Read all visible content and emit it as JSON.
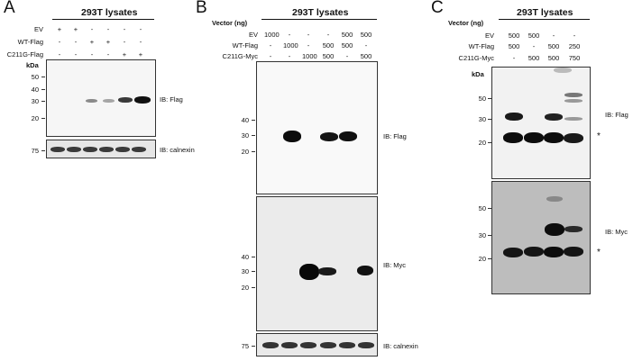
{
  "panels": {
    "A": {
      "letter": "A",
      "title": "293T lysates",
      "rows": [
        {
          "label": "EV",
          "vals": [
            "+",
            "+",
            "-",
            "-",
            "-",
            "-"
          ]
        },
        {
          "label": "WT-Flag",
          "vals": [
            "-",
            "-",
            "+",
            "+",
            "-",
            "-"
          ]
        },
        {
          "label": "C211G-Flag",
          "vals": [
            "-",
            "-",
            "-",
            "-",
            "+",
            "+"
          ]
        }
      ],
      "kda": "kDa",
      "mw_top": [
        "50",
        "40",
        "30",
        "20"
      ],
      "mw_bottom": [
        "75"
      ],
      "ib_top": "IB: Flag",
      "ib_bottom": "IB: calnexin"
    },
    "B": {
      "letter": "B",
      "title": "293T lysates",
      "vector_label": "Vector (ng)",
      "rows": [
        {
          "label": "EV",
          "vals": [
            "1000",
            "-",
            "-",
            "-",
            "500",
            "500"
          ]
        },
        {
          "label": "WT-Flag",
          "vals": [
            "-",
            "1000",
            "-",
            "500",
            "500",
            "-"
          ]
        },
        {
          "label": "C211G-Myc",
          "vals": [
            "-",
            "-",
            "1000",
            "500",
            "-",
            "500"
          ]
        }
      ],
      "mw_flag": [
        "40",
        "30",
        "20"
      ],
      "mw_myc": [
        "40",
        "30",
        "20"
      ],
      "mw_calnexin": [
        "75"
      ],
      "ib_flag": "IB: Flag",
      "ib_myc": "IB: Myc",
      "ib_calnexin": "IB: calnexin"
    },
    "C": {
      "letter": "C",
      "title": "293T lysates",
      "vector_label": "Vector (ng)",
      "rows": [
        {
          "label": "EV",
          "vals": [
            "500",
            "500",
            "-",
            "-"
          ]
        },
        {
          "label": "WT-Flag",
          "vals": [
            "500",
            "-",
            "500",
            "250"
          ]
        },
        {
          "label": "C211G-Myc",
          "vals": [
            "-",
            "500",
            "500",
            "750"
          ]
        }
      ],
      "kda": "kDa",
      "mw_flag": [
        "50",
        "30",
        "20"
      ],
      "mw_myc": [
        "50",
        "30",
        "20"
      ],
      "ib_flag": "IB: Flag",
      "ib_myc": "IB: Myc",
      "asterisk": "*"
    }
  }
}
